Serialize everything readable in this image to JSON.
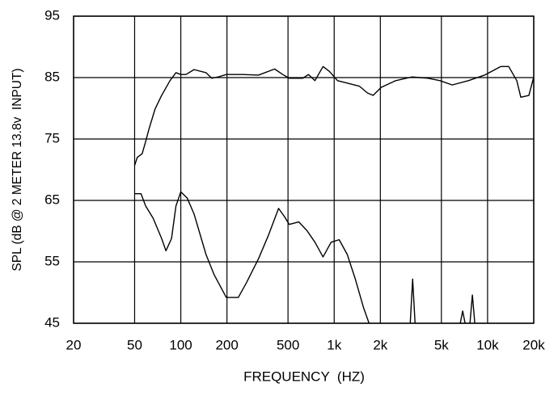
{
  "chart_data": {
    "type": "line",
    "xlabel": "FREQUENCY  (HZ)",
    "ylabel": "SPL (dB @ 2 METER 13.8v  INPUT)",
    "xscale": "log",
    "grid": true,
    "xlim": [
      20,
      20000
    ],
    "ylim": [
      45,
      95
    ],
    "xticks": [
      20,
      50,
      100,
      200,
      500,
      {
        "value": 1000,
        "label": "1k"
      },
      {
        "value": 2000,
        "label": "2k"
      },
      {
        "value": 5000,
        "label": "5k"
      },
      {
        "value": 10000,
        "label": "10k"
      },
      {
        "value": 20000,
        "label": "20k"
      }
    ],
    "yticks": [
      45,
      55,
      65,
      75,
      85,
      95
    ],
    "series": [
      {
        "color": "#000000",
        "x": [
          50,
          52,
          56,
          59,
          62,
          68,
          75,
          85,
          93,
          100,
          108,
          122,
          146,
          159,
          175,
          198,
          252,
          321,
          409,
          462,
          509,
          625,
          680,
          749,
          846,
          932,
          1052,
          1217,
          1460,
          1647,
          1794,
          2024,
          2518,
          3210,
          4088,
          4904,
          5882,
          7494,
          9550,
          12168,
          13734,
          15508,
          16472,
          18592,
          20000
        ],
        "values": [
          70.7,
          72,
          72.6,
          74.6,
          76.6,
          79.9,
          82.1,
          84.5,
          85.8,
          85.5,
          85.5,
          86.3,
          85.8,
          84.9,
          85.1,
          85.5,
          85.5,
          85.4,
          86.4,
          85.5,
          84.9,
          84.9,
          85.5,
          84.5,
          86.8,
          86,
          84.5,
          84.1,
          83.6,
          82.5,
          82.1,
          83.4,
          84.5,
          85.1,
          84.9,
          84.5,
          83.8,
          84.5,
          85.4,
          86.8,
          86.8,
          84.5,
          81.8,
          82.1,
          85.1
        ]
      },
      {
        "color": "#000000",
        "x": [
          50,
          55,
          59,
          66,
          75,
          80,
          87,
          93,
          100,
          110,
          122,
          146,
          165,
          198,
          237,
          268,
          321,
          371,
          434,
          473,
          509,
          588,
          664,
          749,
          846,
          955,
          1078,
          1217,
          1373,
          1551,
          1688,
          null,
          3132,
          3248,
          3368,
          null,
          6638,
          6882,
          7138,
          null,
          7678,
          7962,
          8256
        ],
        "values": [
          66.1,
          66.1,
          64.1,
          62.1,
          58.8,
          56.8,
          58.8,
          64.1,
          66.4,
          65.4,
          62.8,
          56.2,
          52.9,
          49.2,
          49.2,
          51.6,
          55.5,
          59.2,
          63.7,
          62.4,
          61.1,
          61.5,
          60.1,
          58.2,
          55.8,
          58.2,
          58.6,
          56.2,
          52.2,
          47.6,
          45,
          null,
          45,
          52.2,
          45,
          null,
          45,
          47,
          45,
          null,
          45,
          49.6,
          45
        ]
      }
    ]
  }
}
